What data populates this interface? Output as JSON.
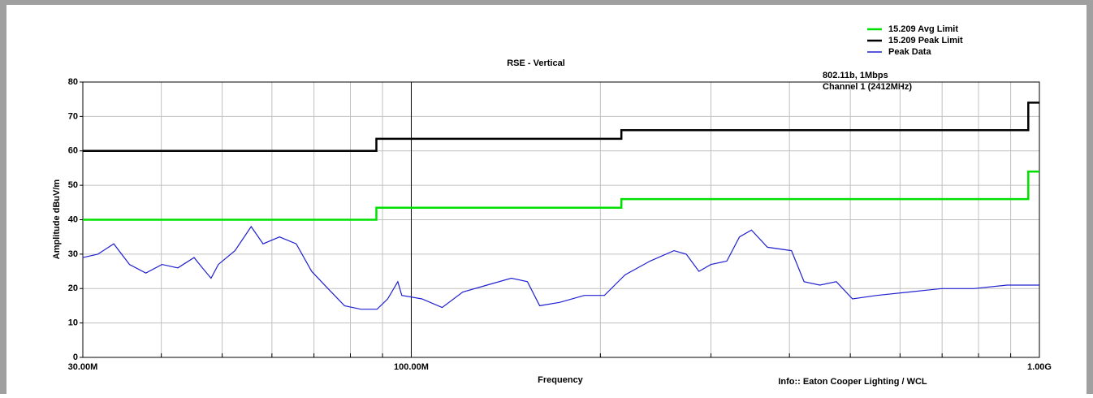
{
  "chart_data": {
    "type": "line",
    "title": "RSE - Vertical",
    "annotations": [
      "802.11b, 1Mbps",
      "Channel 1 (2412MHz)"
    ],
    "info": "Info:: Eaton Cooper Lighting / WCL",
    "xlabel": "Frequency",
    "ylabel": "Amplitude dBuV/m",
    "xscale": "log",
    "grid": true,
    "legend": "upper right",
    "xlim": [
      30,
      1000
    ],
    "ylim": [
      0,
      80
    ],
    "xticks": [
      {
        "value": 30,
        "label": "30.00M"
      },
      {
        "value": 100,
        "label": "100.00M"
      },
      {
        "value": 1000,
        "label": "1.00G"
      }
    ],
    "xminorticks": [
      40,
      50,
      60,
      70,
      80,
      90,
      200,
      300,
      400,
      500,
      600,
      700,
      800,
      900
    ],
    "yticks": [
      0,
      10,
      20,
      30,
      40,
      50,
      60,
      70,
      80
    ],
    "series": [
      {
        "name": "15.209 Avg Limit",
        "color": "#00e000",
        "x": [
          30,
          88,
          88,
          216,
          216,
          960,
          960,
          1000
        ],
        "values": [
          40,
          40,
          43.5,
          43.5,
          46,
          46,
          54,
          54
        ]
      },
      {
        "name": "15.209 Peak Limit",
        "color": "#000000",
        "x": [
          30,
          88,
          88,
          216,
          216,
          960,
          960,
          1000
        ],
        "values": [
          60,
          60,
          63.5,
          63.5,
          66,
          66,
          74,
          74
        ]
      },
      {
        "name": "Peak Data",
        "color": "#2020d0",
        "x": [
          30,
          31.7,
          33.6,
          35.6,
          37.8,
          40.1,
          42.5,
          45.1,
          46.5,
          48,
          49.3,
          52.4,
          55.6,
          58.1,
          61.7,
          65.6,
          69.4,
          73.7,
          78.3,
          83.1,
          88.2,
          91.7,
          95.2,
          96.6,
          104,
          112,
          120.8,
          132,
          144.3,
          153.1,
          160.1,
          172.5,
          188.6,
          203,
          219,
          240,
          262,
          274,
          287,
          300,
          318,
          333,
          348,
          369,
          403,
          422,
          447,
          475,
          504,
          551,
          621,
          699,
          786,
          888,
          1000
        ],
        "values": [
          29,
          30,
          33,
          27,
          24.5,
          27,
          26,
          29,
          26,
          23,
          27,
          31,
          38,
          33,
          35,
          33,
          25,
          20,
          15,
          14,
          14,
          17,
          22,
          18,
          17,
          14.5,
          19,
          21,
          23,
          22,
          15,
          16,
          18,
          18,
          24,
          28,
          31,
          30,
          25,
          27,
          28,
          35,
          37,
          32,
          31,
          22,
          21,
          22,
          17,
          18,
          19,
          20,
          20,
          21,
          21
        ]
      }
    ]
  }
}
